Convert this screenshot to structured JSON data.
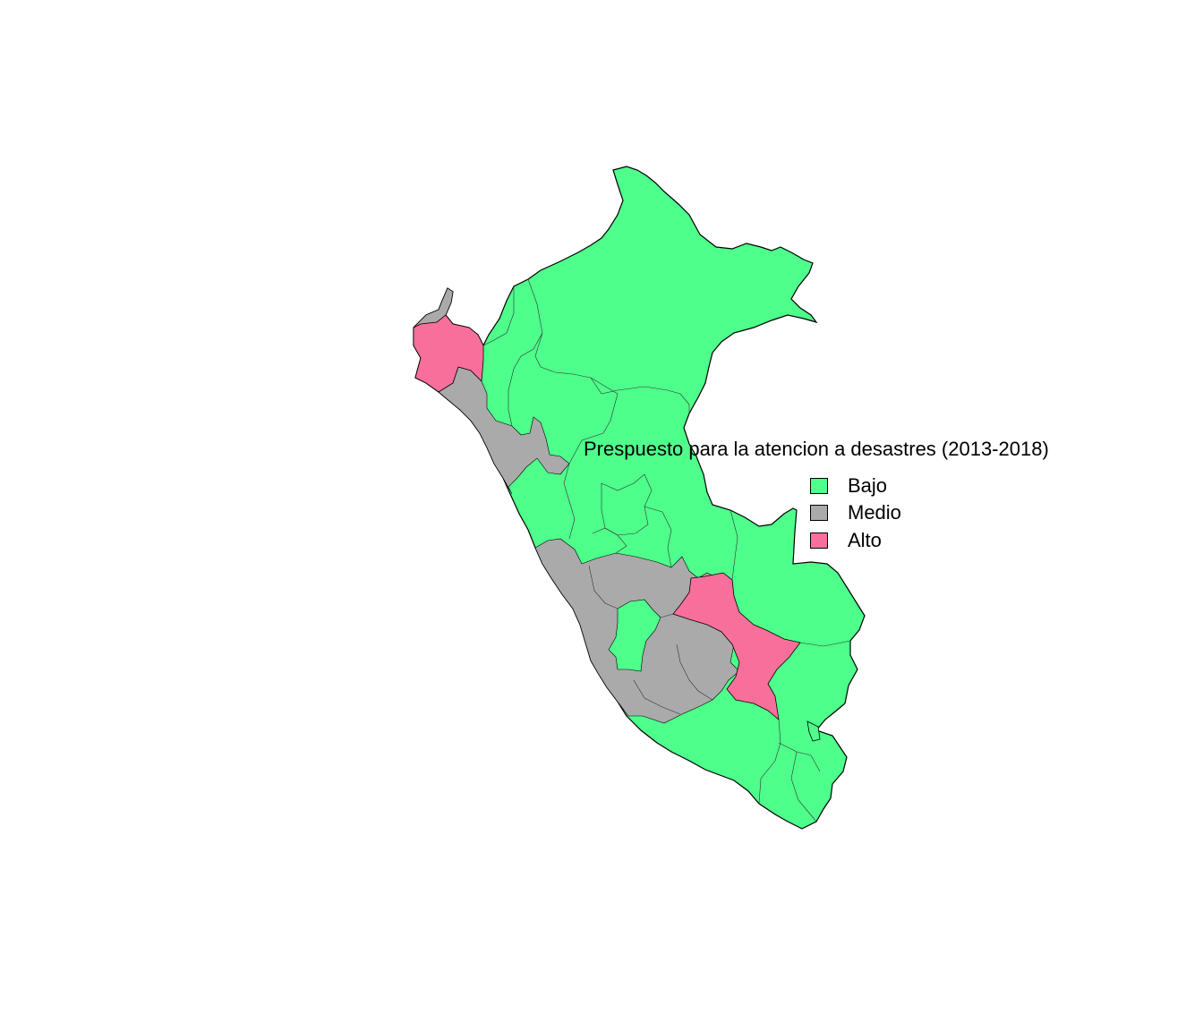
{
  "legend": {
    "title": "Prespuesto para la atencion a desastres (2013-2018)",
    "items": [
      {
        "label": "Bajo",
        "color": "#4EFF8B"
      },
      {
        "label": "Medio",
        "color": "#AAAAAA"
      },
      {
        "label": "Alto",
        "color": "#F96F9B"
      }
    ]
  },
  "region_colors": {
    "bajo": "#4EFF8B",
    "medio": "#AAAAAA",
    "alto": "#F96F9B",
    "border": "#000000"
  }
}
